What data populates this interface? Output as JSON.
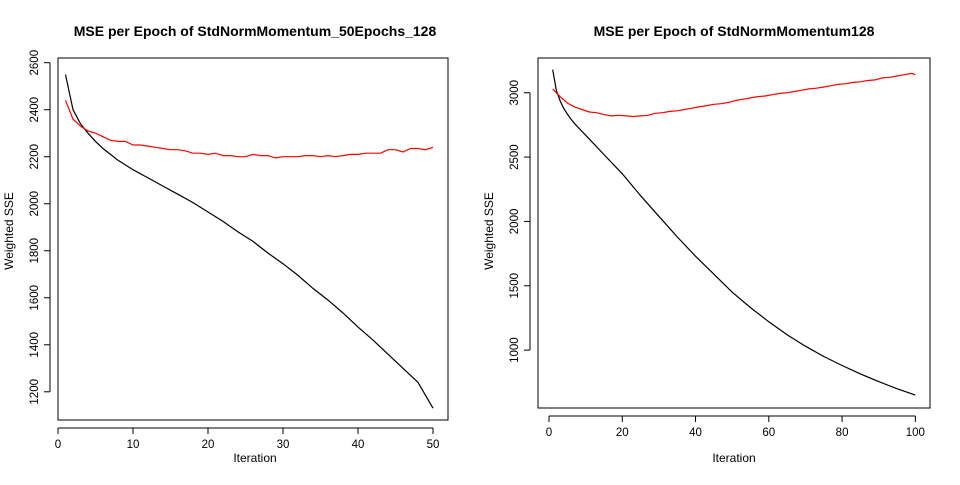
{
  "chart_data": [
    {
      "type": "line",
      "title": "MSE per Epoch of StdNormMomentum_50Epochs_128",
      "xlabel": "Iteration",
      "ylabel": "Weighted SSE",
      "xlim": [
        0,
        52
      ],
      "ylim": [
        1080,
        2620
      ],
      "xticks": [
        0,
        10,
        20,
        30,
        40,
        50
      ],
      "yticks": [
        1200,
        1400,
        1600,
        1800,
        2000,
        2200,
        2400,
        2600
      ],
      "grid": false,
      "series": [
        {
          "color": "#000000",
          "x": [
            1,
            2,
            3,
            4,
            5,
            6,
            7,
            8,
            9,
            10,
            12,
            14,
            16,
            18,
            20,
            22,
            24,
            26,
            28,
            30,
            32,
            34,
            36,
            38,
            40,
            42,
            44,
            46,
            48,
            50
          ],
          "y": [
            2550,
            2400,
            2340,
            2300,
            2265,
            2235,
            2210,
            2185,
            2165,
            2145,
            2110,
            2075,
            2040,
            2005,
            1965,
            1925,
            1880,
            1840,
            1790,
            1745,
            1695,
            1640,
            1590,
            1535,
            1475,
            1420,
            1360,
            1300,
            1240,
            1130
          ]
        },
        {
          "color": "#ff0000",
          "x": [
            1,
            2,
            3,
            4,
            5,
            6,
            7,
            8,
            9,
            10,
            11,
            12,
            13,
            14,
            15,
            16,
            17,
            18,
            19,
            20,
            21,
            22,
            23,
            24,
            25,
            26,
            27,
            28,
            29,
            30,
            31,
            32,
            33,
            34,
            35,
            36,
            37,
            38,
            39,
            40,
            41,
            42,
            43,
            44,
            45,
            46,
            47,
            48,
            49,
            50
          ],
          "y": [
            2440,
            2360,
            2330,
            2310,
            2300,
            2285,
            2270,
            2265,
            2265,
            2250,
            2250,
            2245,
            2240,
            2235,
            2230,
            2230,
            2225,
            2215,
            2215,
            2210,
            2215,
            2205,
            2205,
            2200,
            2200,
            2210,
            2205,
            2205,
            2195,
            2200,
            2200,
            2200,
            2205,
            2205,
            2200,
            2205,
            2200,
            2205,
            2210,
            2210,
            2215,
            2215,
            2215,
            2230,
            2230,
            2220,
            2235,
            2235,
            2230,
            2240
          ]
        }
      ]
    },
    {
      "type": "line",
      "title": "MSE per Epoch of StdNormMomentum128",
      "xlabel": "Iteration",
      "ylabel": "Weighted SSE",
      "xlim": [
        -3,
        104
      ],
      "ylim": [
        550,
        3270
      ],
      "xticks": [
        0,
        20,
        40,
        60,
        80,
        100
      ],
      "yticks": [
        1000,
        1500,
        2000,
        2500,
        3000
      ],
      "grid": false,
      "series": [
        {
          "color": "#000000",
          "x": [
            1,
            2,
            3,
            4,
            5,
            6,
            7,
            8,
            10,
            12,
            15,
            20,
            25,
            30,
            35,
            40,
            45,
            50,
            55,
            60,
            65,
            70,
            75,
            80,
            85,
            90,
            95,
            100
          ],
          "y": [
            3180,
            3020,
            2940,
            2880,
            2835,
            2795,
            2760,
            2730,
            2670,
            2610,
            2520,
            2370,
            2200,
            2040,
            1880,
            1730,
            1590,
            1450,
            1330,
            1220,
            1120,
            1030,
            950,
            880,
            815,
            755,
            700,
            650
          ]
        },
        {
          "color": "#ff0000",
          "x": [
            1,
            3,
            5,
            7,
            9,
            11,
            13,
            15,
            17,
            19,
            21,
            23,
            25,
            27,
            29,
            31,
            33,
            35,
            37,
            39,
            41,
            43,
            45,
            47,
            49,
            51,
            53,
            55,
            57,
            59,
            61,
            63,
            65,
            67,
            69,
            71,
            73,
            75,
            77,
            79,
            81,
            83,
            85,
            87,
            89,
            91,
            93,
            95,
            97,
            99,
            100
          ],
          "y": [
            3030,
            2970,
            2920,
            2890,
            2870,
            2850,
            2845,
            2830,
            2820,
            2825,
            2820,
            2815,
            2820,
            2825,
            2840,
            2845,
            2855,
            2860,
            2870,
            2880,
            2890,
            2900,
            2910,
            2915,
            2925,
            2940,
            2950,
            2960,
            2970,
            2975,
            2985,
            2995,
            3000,
            3010,
            3020,
            3030,
            3035,
            3045,
            3055,
            3065,
            3070,
            3080,
            3085,
            3095,
            3100,
            3115,
            3120,
            3130,
            3140,
            3150,
            3140
          ]
        }
      ]
    }
  ]
}
